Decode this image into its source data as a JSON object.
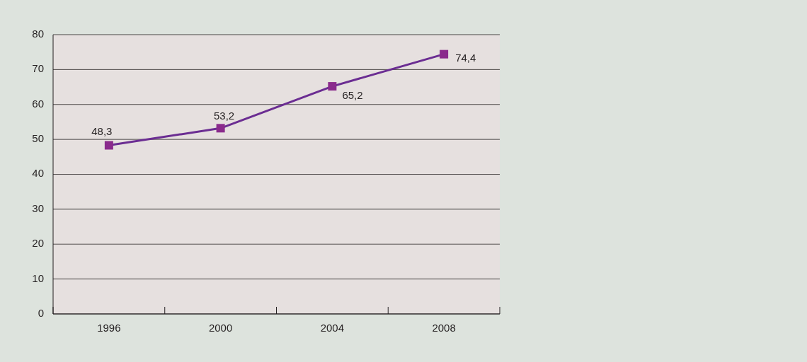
{
  "chart_data": {
    "type": "line",
    "categories": [
      "1996",
      "2000",
      "2004",
      "2008"
    ],
    "series": [
      {
        "color": "#6b2d92",
        "values": [
          48.3,
          53.2,
          65.2,
          74.4
        ],
        "value_labels": [
          "48,3",
          "53,2",
          "65,2",
          "74,4"
        ]
      }
    ],
    "ylim": [
      0,
      80
    ],
    "yticks": [
      0,
      10,
      20,
      30,
      40,
      50,
      60,
      70,
      80
    ],
    "grid": "y",
    "marker": "square",
    "line_style": "solid"
  }
}
